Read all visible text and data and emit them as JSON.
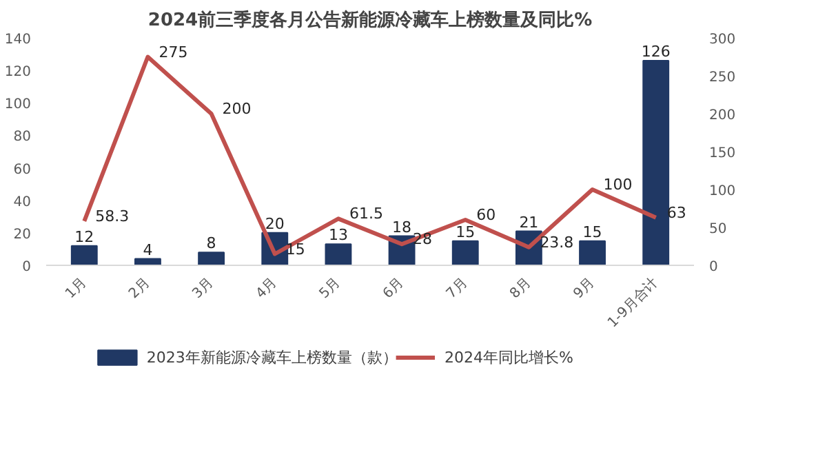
{
  "chart_data": {
    "type": "bar",
    "title": "2024前三季度各月公告新能源冷藏车上榜数量及同比%",
    "categories": [
      "1月",
      "2月",
      "3月",
      "4月",
      "5月",
      "6月",
      "7月",
      "8月",
      "9月",
      "1-9月合计"
    ],
    "series": [
      {
        "name": "2023年新能源冷藏车上榜数量（款）",
        "color": "#203864",
        "values": [
          12,
          4,
          8,
          20,
          13,
          18,
          15,
          21,
          15,
          126
        ]
      },
      {
        "name": "2024年同比增长%",
        "type": "line",
        "axis": "y2",
        "color": "#c0504d",
        "values": [
          58.3,
          275,
          200,
          15,
          61.5,
          28,
          60,
          23.8,
          100,
          63
        ]
      }
    ],
    "ylim": [
      0,
      140
    ],
    "yticks": [
      0,
      20,
      40,
      60,
      80,
      100,
      120,
      140
    ],
    "y2lim": [
      0,
      300
    ],
    "y2ticks": [
      0,
      50,
      100,
      150,
      200,
      250,
      300
    ],
    "data_labels": true,
    "grid": false,
    "legend": "bottom",
    "marker": "none",
    "line_style": "solid"
  }
}
